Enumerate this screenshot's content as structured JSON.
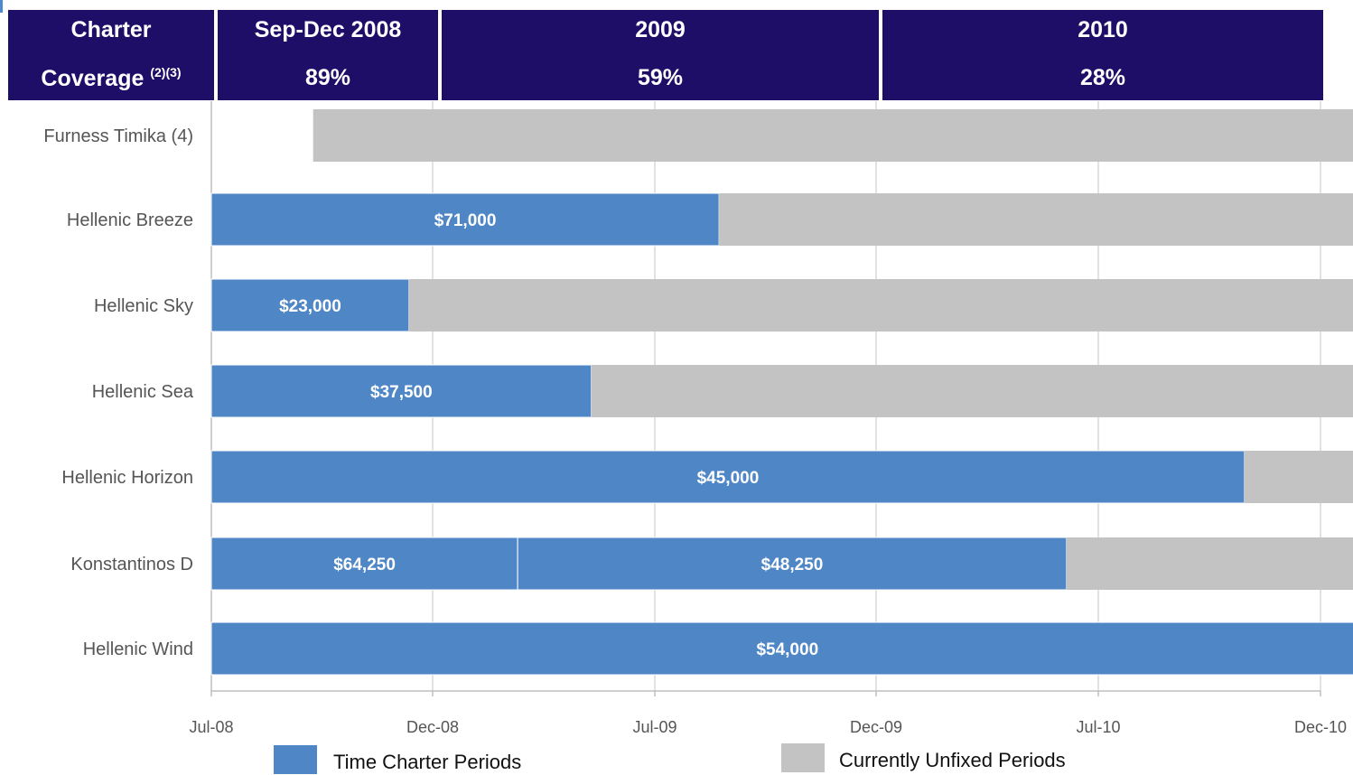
{
  "header": {
    "columns": [
      {
        "line1": "Charter",
        "line2": "Coverage",
        "line2_sup": "(2)(3)"
      },
      {
        "line1": "Sep-Dec 2008",
        "line2": "89%"
      },
      {
        "line1": "2009",
        "line2": "59%"
      },
      {
        "line1": "2010",
        "line2": "28%"
      }
    ]
  },
  "colors": {
    "header_bg": "#1f0e68",
    "time_charter": "#4f86c6",
    "unfixed": "#c3c3c3",
    "grid": "#d9d9d9"
  },
  "chart_data": {
    "type": "bar",
    "orientation": "horizontal-timeline",
    "categories": [
      "Furness Timika (4)",
      "Hellenic Breeze",
      "Hellenic Sky",
      "Hellenic Sea",
      "Hellenic Horizon",
      "Konstantinos D",
      "Hellenic Wind"
    ],
    "x_ticks": [
      "Jul-08",
      "Dec-08",
      "Jul-09",
      "Dec-09",
      "Jul-10",
      "Dec-10"
    ],
    "xlim": [
      "2008-07",
      "2010-12"
    ],
    "legend": {
      "placement": "bottom",
      "items": [
        {
          "label": "Time Charter Periods",
          "key": "time_charter"
        },
        {
          "label": "Currently Unfixed Periods",
          "key": "unfixed"
        }
      ]
    },
    "rows": [
      {
        "name": "Furness Timika (4)",
        "segments": [
          {
            "type": "unfixed",
            "start": "2008-09-10",
            "end": "2010-12-31",
            "label": ""
          }
        ]
      },
      {
        "name": "Hellenic Breeze",
        "segments": [
          {
            "type": "time_charter",
            "start": "2008-07-01",
            "end": "2009-08-15",
            "label": "$71,000"
          },
          {
            "type": "unfixed",
            "start": "2009-08-15",
            "end": "2010-12-31",
            "label": ""
          }
        ]
      },
      {
        "name": "Hellenic Sky",
        "segments": [
          {
            "type": "time_charter",
            "start": "2008-07-01",
            "end": "2008-11-15",
            "label": "$23,000"
          },
          {
            "type": "unfixed",
            "start": "2008-11-15",
            "end": "2010-12-31",
            "label": ""
          }
        ]
      },
      {
        "name": "Hellenic Sea",
        "segments": [
          {
            "type": "time_charter",
            "start": "2008-07-01",
            "end": "2009-05-01",
            "label": "$37,500"
          },
          {
            "type": "unfixed",
            "start": "2009-05-01",
            "end": "2010-12-31",
            "label": ""
          }
        ]
      },
      {
        "name": "Hellenic Horizon",
        "segments": [
          {
            "type": "time_charter",
            "start": "2008-07-01",
            "end": "2010-10-10",
            "label": "$45,000"
          },
          {
            "type": "unfixed",
            "start": "2010-10-10",
            "end": "2010-12-31",
            "label": ""
          }
        ]
      },
      {
        "name": "Konstantinos D",
        "segments": [
          {
            "type": "time_charter",
            "start": "2008-07-01",
            "end": "2009-02-20",
            "label": "$64,250"
          },
          {
            "type": "time_charter",
            "start": "2009-02-20",
            "end": "2010-06-01",
            "label": "$48,250"
          },
          {
            "type": "unfixed",
            "start": "2010-06-01",
            "end": "2010-12-31",
            "label": ""
          }
        ]
      },
      {
        "name": "Hellenic Wind",
        "segments": [
          {
            "type": "time_charter",
            "start": "2008-07-01",
            "end": "2010-12-31",
            "label": "$54,000"
          }
        ]
      }
    ]
  }
}
